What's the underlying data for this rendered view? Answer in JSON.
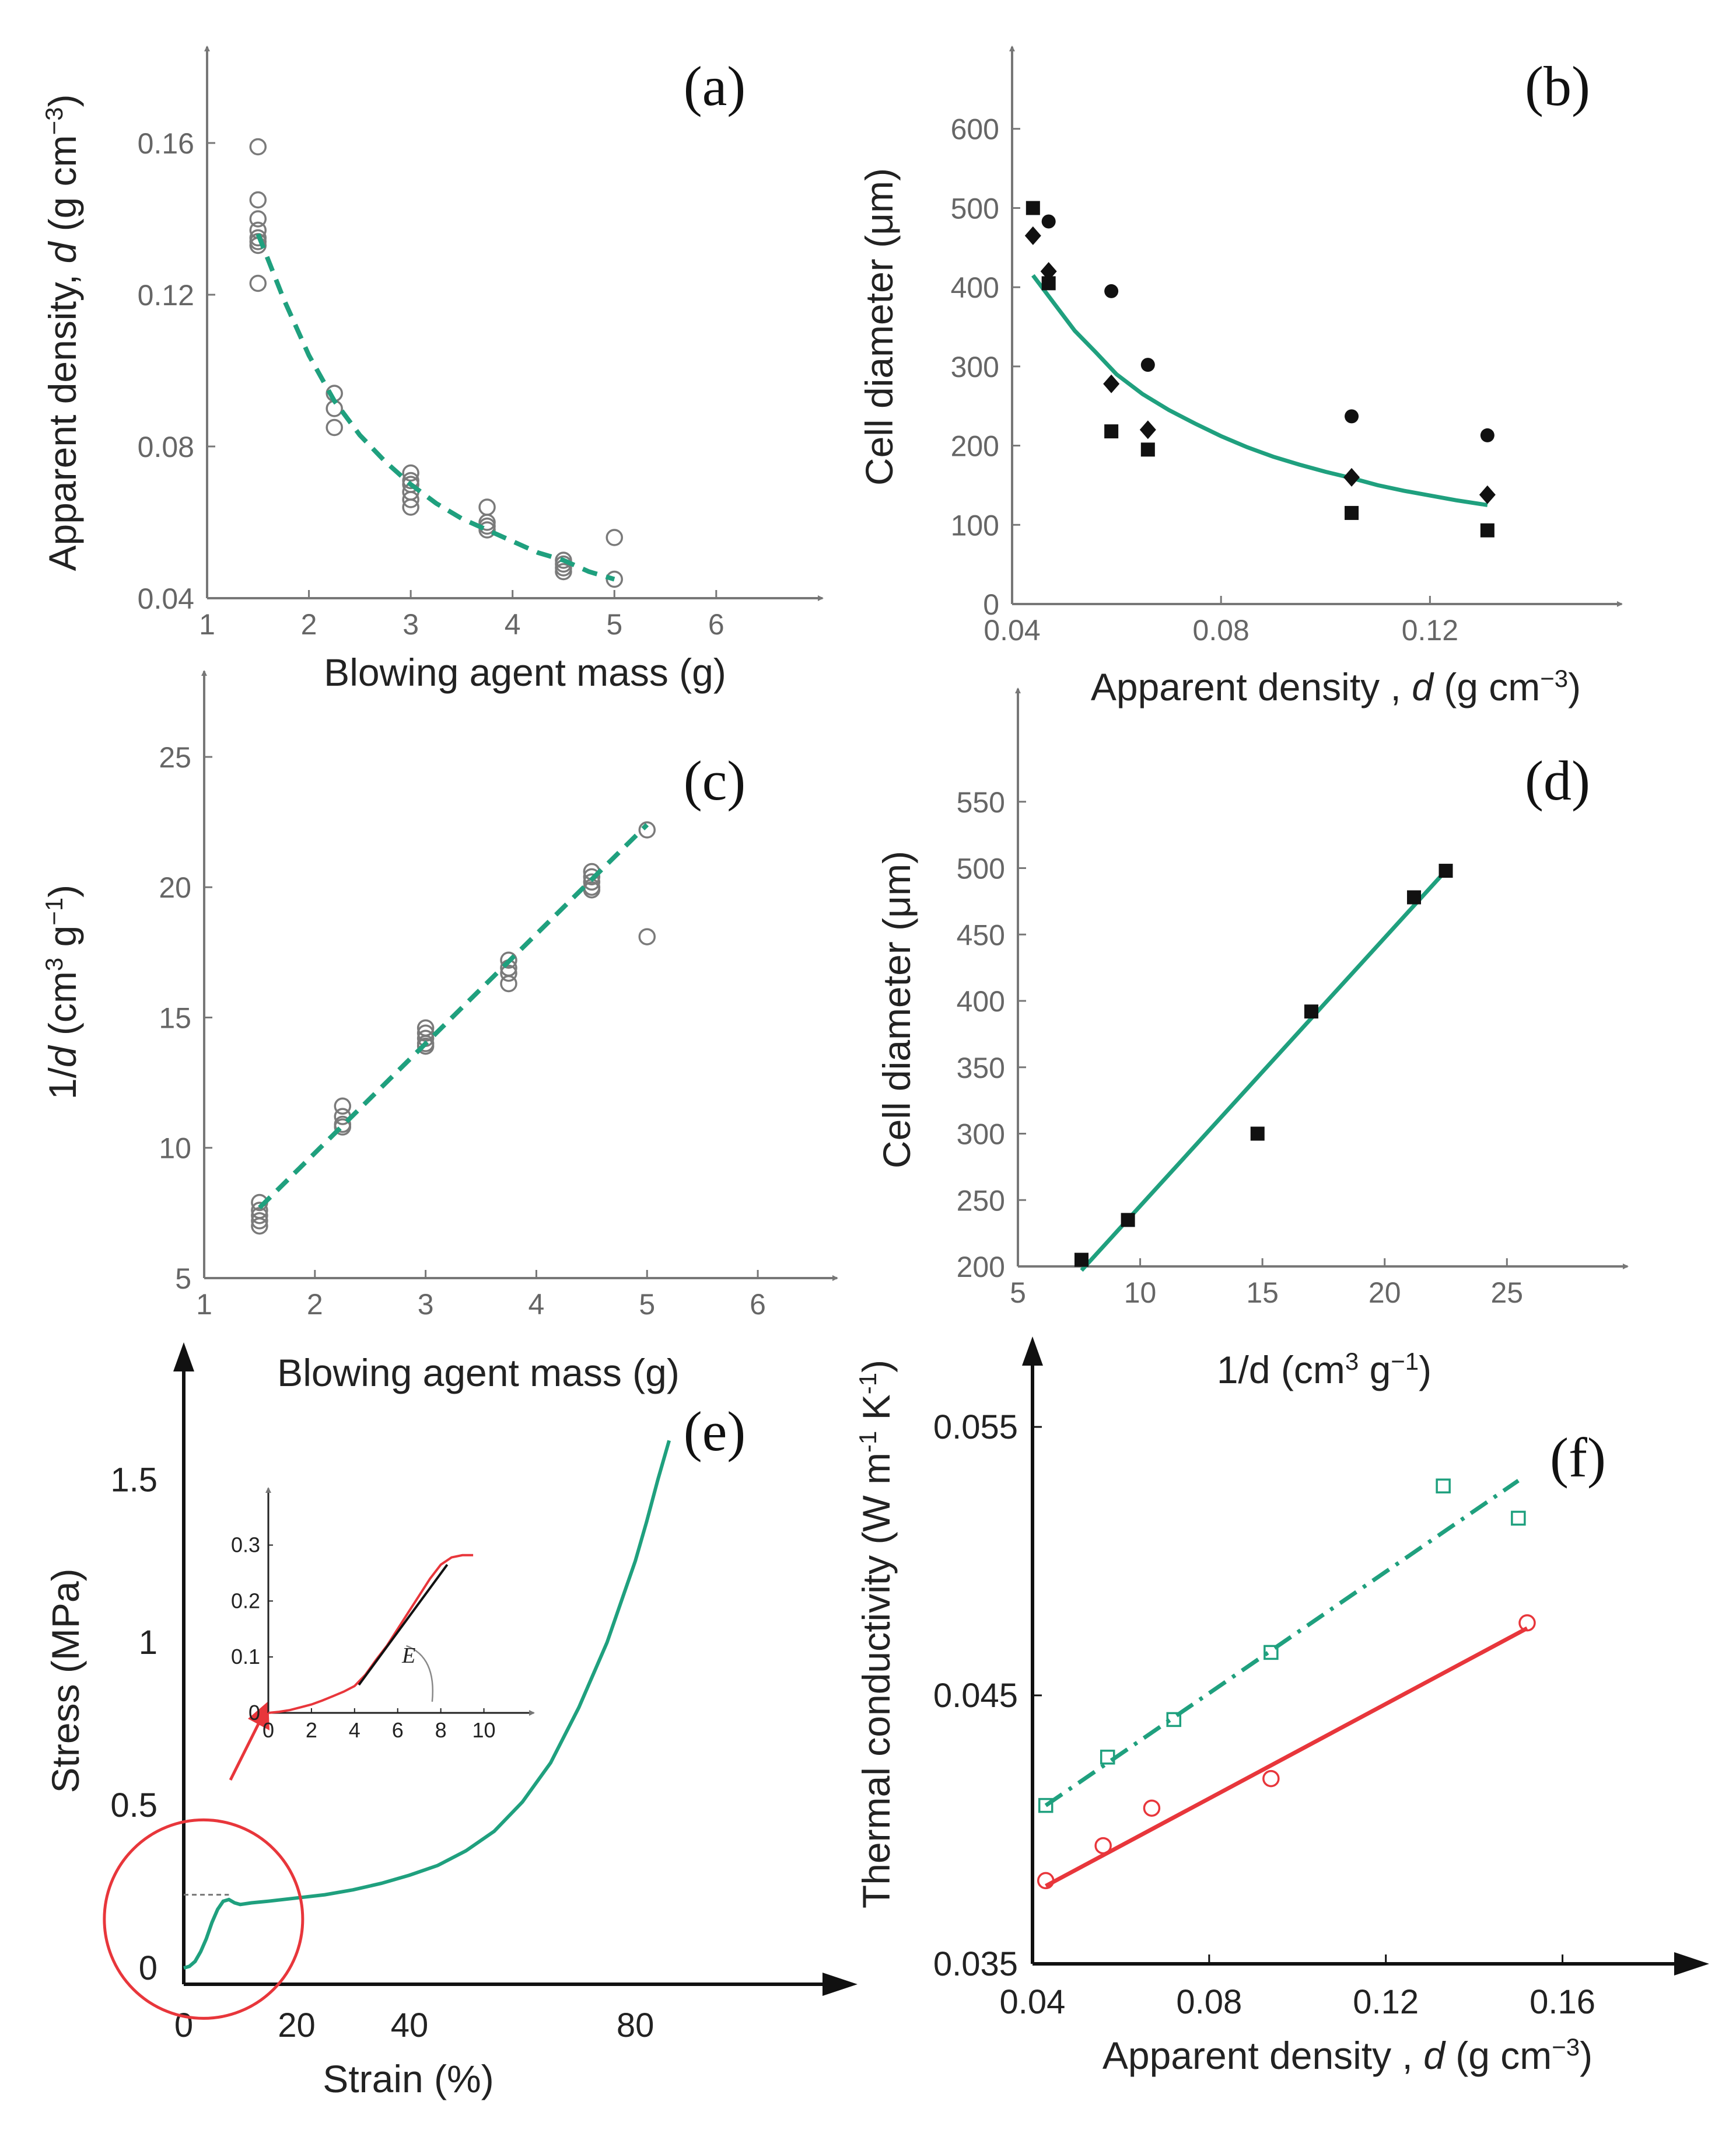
{
  "colors": {
    "fit": "#1fa07e",
    "red": "#e8363b",
    "marker": "#111111",
    "open_marker": "#7a7a7a",
    "axis": "#777777"
  },
  "chart_data": [
    {
      "panel": "(a)",
      "type": "scatter",
      "xlabel": "Blowing agent mass (g)",
      "ylabel_parts": [
        "Apparent density, ",
        "d",
        " (g cm",
        "−3",
        ")"
      ],
      "xlim": [
        1,
        6.7
      ],
      "ylim": [
        0.04,
        0.17
      ],
      "xticks": [
        1,
        2,
        3,
        4,
        5,
        6
      ],
      "yticks": [
        0.04,
        0.08,
        0.12,
        0.16
      ],
      "ytick_labels": [
        "0.04",
        "0.08",
        "0.12",
        "0.16"
      ],
      "points": {
        "marker": "open-circle",
        "x": [
          1.5,
          1.5,
          1.5,
          1.5,
          1.5,
          1.5,
          1.5,
          1.5,
          2.25,
          2.25,
          2.25,
          3,
          3,
          3,
          3,
          3,
          3,
          3.75,
          3.75,
          3.75,
          3.75,
          4.5,
          4.5,
          4.5,
          4.5,
          5,
          5
        ],
        "y": [
          0.159,
          0.145,
          0.14,
          0.137,
          0.135,
          0.134,
          0.133,
          0.123,
          0.094,
          0.09,
          0.085,
          0.073,
          0.071,
          0.07,
          0.068,
          0.066,
          0.064,
          0.064,
          0.06,
          0.059,
          0.058,
          0.05,
          0.049,
          0.048,
          0.047,
          0.056,
          0.045
        ]
      },
      "fit": {
        "style": "dashed",
        "x": [
          1.5,
          1.75,
          2.0,
          2.25,
          2.5,
          2.75,
          3.0,
          3.25,
          3.5,
          3.75,
          4.0,
          4.25,
          4.5,
          4.75,
          5.0
        ],
        "y": [
          0.136,
          0.119,
          0.104,
          0.092,
          0.083,
          0.076,
          0.07,
          0.065,
          0.061,
          0.058,
          0.055,
          0.052,
          0.05,
          0.047,
          0.045
        ]
      }
    },
    {
      "panel": "(b)",
      "type": "scatter",
      "xlabel_parts": [
        "Apparent density , ",
        "d",
        " (g cm",
        "−3",
        ")"
      ],
      "ylabel": "Cell diameter (μm)",
      "xlim": [
        0.04,
        0.15
      ],
      "ylim": [
        0,
        630
      ],
      "xticks": [
        0.04,
        0.08,
        0.12
      ],
      "xtick_labels": [
        "0.04",
        "0.08",
        "0.12"
      ],
      "yticks": [
        0,
        100,
        200,
        300,
        400,
        500,
        600
      ],
      "series": [
        {
          "marker": "square",
          "x": [
            0.044,
            0.047,
            0.059,
            0.066,
            0.105,
            0.131
          ],
          "y": [
            500,
            405,
            218,
            195,
            115,
            93
          ]
        },
        {
          "marker": "circle",
          "x": [
            0.047,
            0.059,
            0.066,
            0.105,
            0.131
          ],
          "y": [
            483,
            395,
            302,
            237,
            213
          ]
        },
        {
          "marker": "diamond",
          "x": [
            0.044,
            0.047,
            0.059,
            0.066,
            0.105,
            0.131
          ],
          "y": [
            465,
            420,
            278,
            220,
            160,
            138
          ]
        }
      ],
      "fit": {
        "style": "solid",
        "x": [
          0.044,
          0.048,
          0.052,
          0.056,
          0.06,
          0.065,
          0.07,
          0.075,
          0.08,
          0.085,
          0.09,
          0.095,
          0.1,
          0.105,
          0.11,
          0.115,
          0.12,
          0.125,
          0.131
        ],
        "y": [
          415,
          380,
          345,
          318,
          290,
          265,
          245,
          228,
          212,
          198,
          186,
          176,
          167,
          159,
          150,
          143,
          137,
          131,
          125
        ]
      }
    },
    {
      "panel": "(c)",
      "type": "scatter",
      "xlabel": "Blowing agent mass (g)",
      "ylabel_parts": [
        "1/",
        "d",
        " (cm",
        "3",
        " g",
        "−1",
        ")"
      ],
      "xlim": [
        1,
        6.4
      ],
      "ylim": [
        5,
        26.5
      ],
      "xticks": [
        1,
        2,
        3,
        4,
        5,
        6
      ],
      "yticks": [
        5,
        10,
        15,
        20,
        25
      ],
      "points": {
        "marker": "open-circle",
        "x": [
          1.5,
          1.5,
          1.5,
          1.5,
          1.5,
          2.25,
          2.25,
          2.25,
          2.25,
          3,
          3,
          3,
          3,
          3,
          3.75,
          3.75,
          3.75,
          3.75,
          4.5,
          4.5,
          4.5,
          4.5,
          4.5,
          5,
          5
        ],
        "y": [
          7.9,
          7.6,
          7.4,
          7.2,
          7.0,
          11.6,
          11.2,
          10.9,
          10.8,
          14.6,
          14.4,
          14.2,
          14.0,
          13.9,
          17.2,
          16.9,
          16.7,
          16.3,
          20.6,
          20.4,
          20.2,
          20.0,
          19.9,
          22.2,
          18.1
        ]
      },
      "fit": {
        "style": "dashed",
        "x": [
          1.5,
          5
        ],
        "y": [
          7.7,
          22.4
        ]
      }
    },
    {
      "panel": "(d)",
      "type": "scatter",
      "xlabel_parts": [
        "1/d (cm",
        "3",
        " g",
        "−1",
        ")"
      ],
      "ylabel": "Cell diameter (μm)",
      "xlim": [
        5,
        28.5
      ],
      "ylim": [
        200,
        600
      ],
      "xticks": [
        5,
        10,
        15,
        20,
        25
      ],
      "yticks": [
        200,
        250,
        300,
        350,
        400,
        450,
        500,
        550
      ],
      "points": {
        "marker": "square",
        "x": [
          7.6,
          9.5,
          14.8,
          17.0,
          21.2,
          22.5
        ],
        "y": [
          205,
          235,
          300,
          392,
          478,
          498
        ]
      },
      "fit": {
        "style": "solid",
        "x": [
          7.6,
          22.5
        ],
        "y": [
          197,
          498
        ]
      }
    },
    {
      "panel": "(e)",
      "type": "line",
      "xlabel": "Strain (%)",
      "ylabel": "Stress (MPa)",
      "xlim": [
        0,
        108
      ],
      "ylim": [
        -0.05,
        1.85
      ],
      "xticks": [
        0,
        20,
        40,
        80
      ],
      "yticks": [
        0,
        0.5,
        1,
        1.5
      ],
      "ytick_labels": [
        "0",
        "0.5",
        "1",
        "1.5"
      ],
      "curve": {
        "x": [
          0,
          1,
          2,
          3,
          4,
          5,
          6,
          7,
          8,
          9,
          10,
          12,
          15,
          20,
          25,
          30,
          35,
          40,
          45,
          50,
          55,
          60,
          65,
          70,
          75,
          78,
          80,
          82,
          84,
          86
        ],
        "y": [
          0,
          0.005,
          0.02,
          0.05,
          0.09,
          0.14,
          0.18,
          0.205,
          0.21,
          0.2,
          0.195,
          0.2,
          0.205,
          0.215,
          0.225,
          0.24,
          0.26,
          0.285,
          0.315,
          0.36,
          0.42,
          0.51,
          0.63,
          0.8,
          1.0,
          1.15,
          1.25,
          1.37,
          1.5,
          1.62
        ]
      },
      "inset": {
        "xticks": [
          0,
          2,
          4,
          6,
          8,
          10
        ],
        "yticks": [
          0,
          0.1,
          0.2,
          0.3
        ],
        "ytick_labels": [
          "0",
          "0.1",
          "0.2",
          "0.3"
        ],
        "xlim": [
          0,
          11.5
        ],
        "ylim": [
          0,
          0.36
        ],
        "curve": {
          "x": [
            0,
            0.5,
            1,
            1.5,
            2,
            2.5,
            3,
            3.5,
            4,
            4.5,
            5,
            5.5,
            6,
            6.5,
            7,
            7.5,
            8,
            8.5,
            9,
            9.5
          ],
          "y": [
            0,
            0.002,
            0.005,
            0.01,
            0.015,
            0.022,
            0.03,
            0.038,
            0.048,
            0.068,
            0.095,
            0.12,
            0.15,
            0.18,
            0.21,
            0.24,
            0.265,
            0.278,
            0.282,
            0.282
          ]
        },
        "tangent": {
          "x": [
            4.2,
            8.3
          ],
          "y": [
            0.05,
            0.265
          ]
        },
        "annotation": "E"
      }
    },
    {
      "panel": "(f)",
      "type": "scatter",
      "xlabel_parts": [
        "Apparent density , ",
        "d",
        " (g cm",
        "−3",
        ")"
      ],
      "ylabel_parts": [
        "Thermal conductivity (W m",
        "-1",
        " K",
        "-1",
        ")"
      ],
      "xlim": [
        0.04,
        0.18
      ],
      "ylim": [
        0.035,
        0.0575
      ],
      "xticks": [
        0.04,
        0.08,
        0.12,
        0.16
      ],
      "xtick_labels": [
        "0.04",
        "0.08",
        "0.12",
        "0.16"
      ],
      "yticks": [
        0.035,
        0.045,
        0.055
      ],
      "ytick_labels": [
        "0.035",
        "0.045",
        "0.055"
      ],
      "series": [
        {
          "marker": "open-square",
          "color": "#1fa07e",
          "x": [
            0.043,
            0.057,
            0.072,
            0.094,
            0.133,
            0.15
          ],
          "y": [
            0.0409,
            0.0427,
            0.0441,
            0.0466,
            0.0528,
            0.0516
          ],
          "fit": {
            "style": "dash-dot",
            "x": [
              0.043,
              0.15
            ],
            "y": [
              0.0409,
              0.053
            ]
          }
        },
        {
          "marker": "open-circle",
          "color": "#e8363b",
          "x": [
            0.043,
            0.056,
            0.067,
            0.094,
            0.152
          ],
          "y": [
            0.0381,
            0.0394,
            0.0408,
            0.0419,
            0.0477
          ],
          "fit": {
            "style": "solid",
            "x": [
              0.043,
              0.152
            ],
            "y": [
              0.0379,
              0.0475
            ]
          }
        }
      ]
    }
  ]
}
